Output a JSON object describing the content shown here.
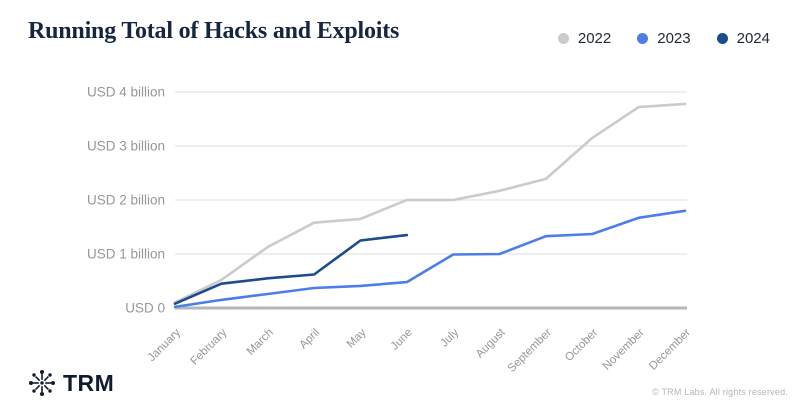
{
  "header": {
    "title": "Running Total of Hacks and Exploits"
  },
  "footer": {
    "logo_text": "TRM",
    "copyright": "© TRM Labs. All rights reserved."
  },
  "chart_data": {
    "type": "line",
    "title": "Running Total of Hacks and Exploits",
    "unit": "USD billions (cumulative)",
    "categories": [
      "January",
      "February",
      "March",
      "April",
      "May",
      "June",
      "July",
      "August",
      "September",
      "October",
      "November",
      "December"
    ],
    "y_ticks": [
      {
        "value": 0,
        "label": "USD 0"
      },
      {
        "value": 1,
        "label": "USD 1 billion"
      },
      {
        "value": 2,
        "label": "USD 2 billion"
      },
      {
        "value": 3,
        "label": "USD 3 billion"
      },
      {
        "value": 4,
        "label": "USD 4 billion"
      }
    ],
    "ylim": [
      0,
      4
    ],
    "grid": true,
    "legend_position": "top-right",
    "series": [
      {
        "name": "2022",
        "color": "#c9cbce",
        "values": [
          0.1,
          0.52,
          1.13,
          1.58,
          1.65,
          2.0,
          2.0,
          2.17,
          2.39,
          3.15,
          3.72,
          3.78
        ]
      },
      {
        "name": "2023",
        "color": "#4d7de8",
        "values": [
          0.02,
          0.15,
          0.26,
          0.37,
          0.41,
          0.48,
          0.99,
          1.0,
          1.33,
          1.37,
          1.67,
          1.8
        ]
      },
      {
        "name": "2024",
        "color": "#1c4b8e",
        "values": [
          0.08,
          0.45,
          0.55,
          0.62,
          1.25,
          1.35
        ]
      }
    ],
    "colors": {
      "gridline": "#e2e4e7",
      "baseline": "#b4b7ba",
      "axis_label": "#94979b",
      "title": "#16263e"
    }
  }
}
